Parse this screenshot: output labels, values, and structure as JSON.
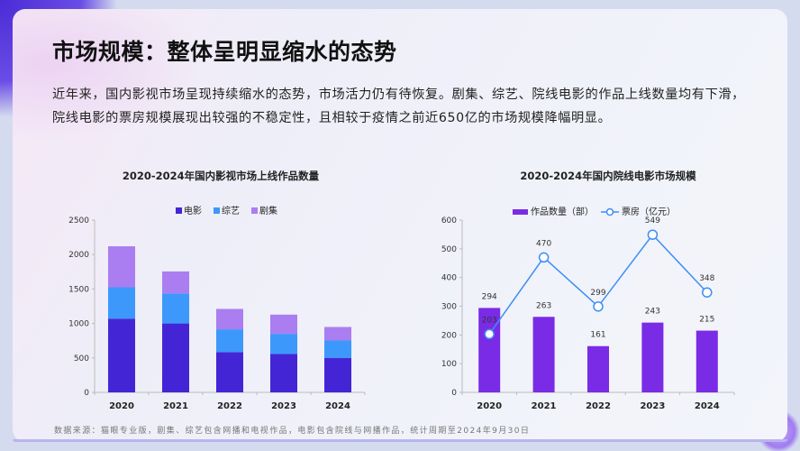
{
  "header": {
    "title": "市场规模：整体呈明显缩水的态势"
  },
  "summary": "近年来，国内影视市场呈现持续缩水的态势，市场活力仍有待恢复。剧集、综艺、院线电影的作品上线数量均有下滑，院线电影的票房规模展现出较强的不稳定性，且相较于疫情之前近650亿的市场规模降幅明显。",
  "footnote": "数据来源：猫眼专业版，剧集、综艺包含网播和电视作品，电影包含院线与网播作品，统计周期至2024年9月30日",
  "chart_data": [
    {
      "type": "bar",
      "stacked": true,
      "title": "2020-2024年国内影视市场上线作品数量",
      "categories": [
        "2020",
        "2021",
        "2022",
        "2023",
        "2024"
      ],
      "ylim": [
        0,
        2500
      ],
      "yticks": [
        0,
        500,
        1000,
        1500,
        2000,
        2500
      ],
      "legend": "top",
      "grid": false,
      "series": [
        {
          "name": "电影",
          "color": "#4425d6",
          "values": [
            1070,
            1000,
            584,
            557,
            501
          ]
        },
        {
          "name": "综艺",
          "color": "#3d98fb",
          "values": [
            455,
            435,
            331,
            292,
            252
          ]
        },
        {
          "name": "剧集",
          "color": "#aa7ef0",
          "values": [
            595,
            320,
            296,
            279,
            196
          ]
        }
      ]
    },
    {
      "type": "bar+line",
      "title": "2020-2024年国内院线电影市场规模",
      "categories": [
        "2020",
        "2021",
        "2022",
        "2023",
        "2024"
      ],
      "ylim": [
        0,
        600
      ],
      "yticks": [
        0,
        100,
        200,
        300,
        400,
        500,
        600
      ],
      "legend": "top",
      "grid": false,
      "series": [
        {
          "name": "作品数量（部）",
          "type": "bar",
          "color": "#7a2be6",
          "values": [
            294,
            263,
            161,
            243,
            215
          ]
        },
        {
          "name": "票房（亿元）",
          "type": "line",
          "color": "#3d8ef5",
          "values": [
            203,
            470,
            299,
            549,
            348
          ]
        }
      ]
    }
  ]
}
